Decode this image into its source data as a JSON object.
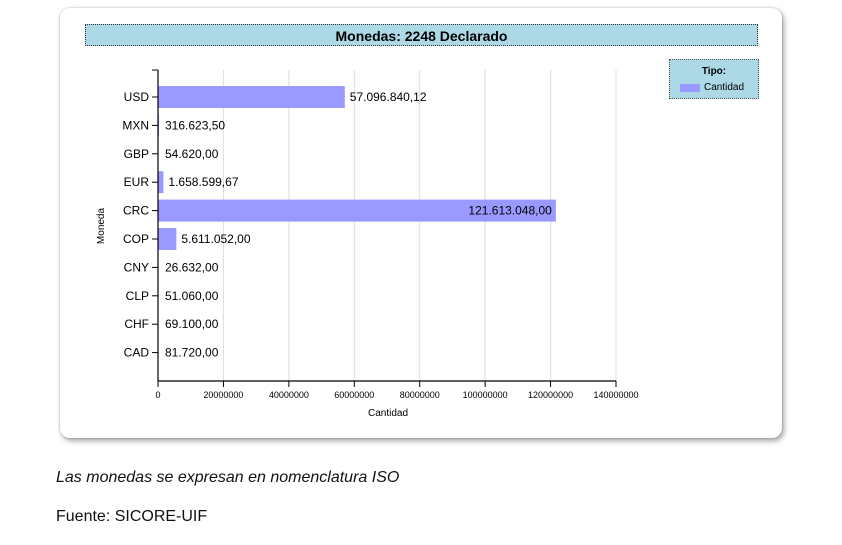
{
  "chart_data": {
    "type": "bar",
    "orientation": "horizontal",
    "title": "Monedas: 2248 Declarado",
    "xlabel": "Cantidad",
    "ylabel": "Moneda",
    "categories": [
      "USD",
      "MXN",
      "GBP",
      "EUR",
      "CRC",
      "COP",
      "CNY",
      "CLP",
      "CHF",
      "CAD"
    ],
    "series": [
      {
        "name": "Cantidad",
        "values": [
          57096840.12,
          316623.5,
          54620.0,
          1658599.67,
          121613048.0,
          5611052.0,
          26632.0,
          51060.0,
          69100.0,
          81720.0
        ],
        "labels": [
          "57.096.840,12",
          "316.623,50",
          "54.620,00",
          "1.658.599,67",
          "121.613.048,00",
          "5.611.052,00",
          "26.632,00",
          "51.060,00",
          "69.100,00",
          "81.720,00"
        ],
        "color": "#9999ff"
      }
    ],
    "xlim": [
      0,
      140000000
    ],
    "xticks": [
      "0",
      "20000000",
      "40000000",
      "60000000",
      "80000000",
      "100000000",
      "120000000",
      "140000000"
    ],
    "grid": true,
    "legend": {
      "title": "Tipo:",
      "position": "top-right"
    }
  },
  "caption": "Las monedas se expresan en nomenclatura ISO",
  "source": "Fuente: SICORE-UIF"
}
